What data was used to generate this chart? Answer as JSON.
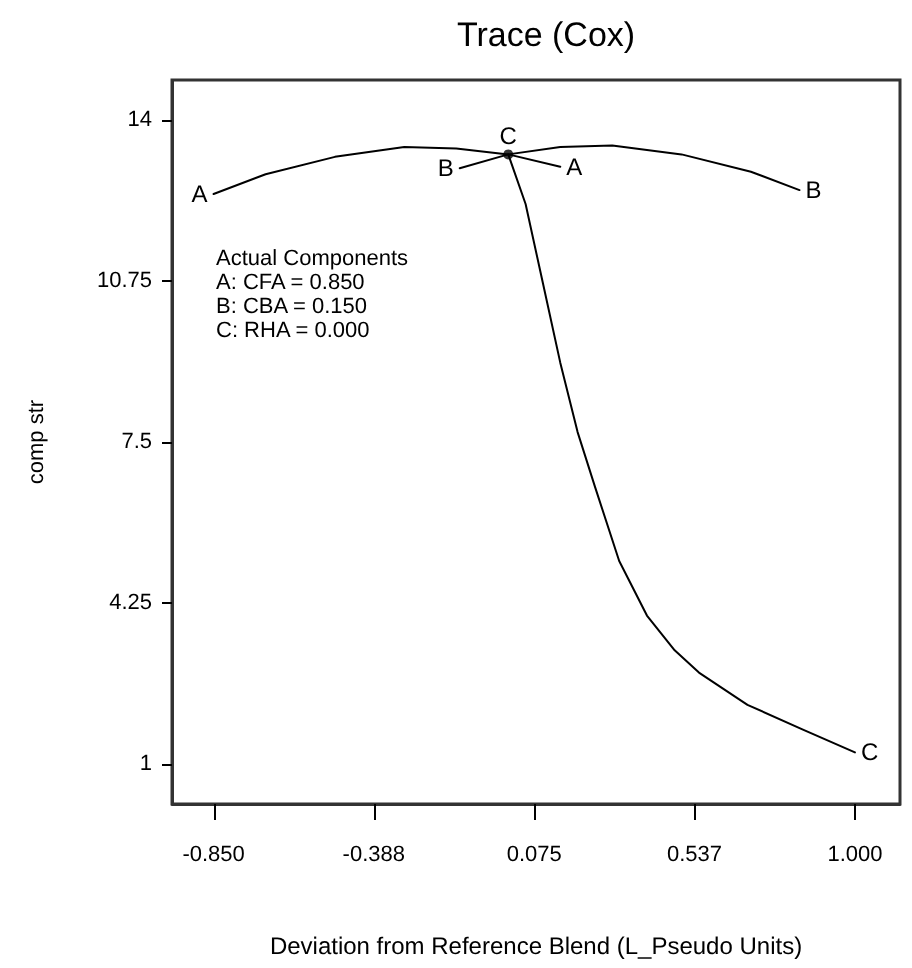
{
  "chart_data": {
    "type": "line",
    "title": "Trace (Cox)",
    "xlabel": "Deviation from Reference Blend (L_Pseudo Units)",
    "ylabel": "comp str",
    "annotations": [
      "Actual Components",
      "A: CFA = 0.850",
      "B: CBA = 0.150",
      "C: RHA = 0.000"
    ],
    "series": [
      {
        "name": "A",
        "color": "#000000",
        "x": [
          -0.85,
          -0.7,
          -0.5,
          -0.3,
          -0.15,
          0,
          0.15
        ],
        "values": [
          12.5,
          12.9,
          13.25,
          13.45,
          13.42,
          13.3,
          13.05
        ]
      },
      {
        "name": "B",
        "color": "#000000",
        "x": [
          -0.14,
          0,
          0.15,
          0.3,
          0.5,
          0.7,
          0.84
        ],
        "values": [
          13.02,
          13.3,
          13.45,
          13.48,
          13.3,
          12.95,
          12.58
        ]
      },
      {
        "name": "C",
        "color": "#000000",
        "x": [
          0,
          0.05,
          0.1,
          0.15,
          0.2,
          0.25,
          0.32,
          0.4,
          0.48,
          0.55,
          0.69,
          0.85,
          1.0
        ],
        "values": [
          13.3,
          12.3,
          10.7,
          9.1,
          7.7,
          6.6,
          5.1,
          4.0,
          3.3,
          2.85,
          2.2,
          1.7,
          1.24
        ]
      },
      {
        "type": "scatter",
        "marker": "circle",
        "color": "#000000",
        "x": [
          0
        ],
        "values": [
          13.3
        ]
      }
    ],
    "xlim": [
      -0.97,
      1.13
    ],
    "ylim": [
      0.2,
      14.8
    ],
    "xticks": [
      {
        "value": -0.85,
        "label": "-0.850"
      },
      {
        "value": -0.388,
        "label": "-0.388"
      },
      {
        "value": 0.075,
        "label": "0.075"
      },
      {
        "value": 0.537,
        "label": "0.537"
      },
      {
        "value": 1,
        "label": "1.000"
      }
    ],
    "yticks": [
      1,
      4.25,
      7.5,
      10.75,
      14
    ],
    "grid": false,
    "legend": false,
    "marker": "none",
    "line_style": "solid"
  }
}
